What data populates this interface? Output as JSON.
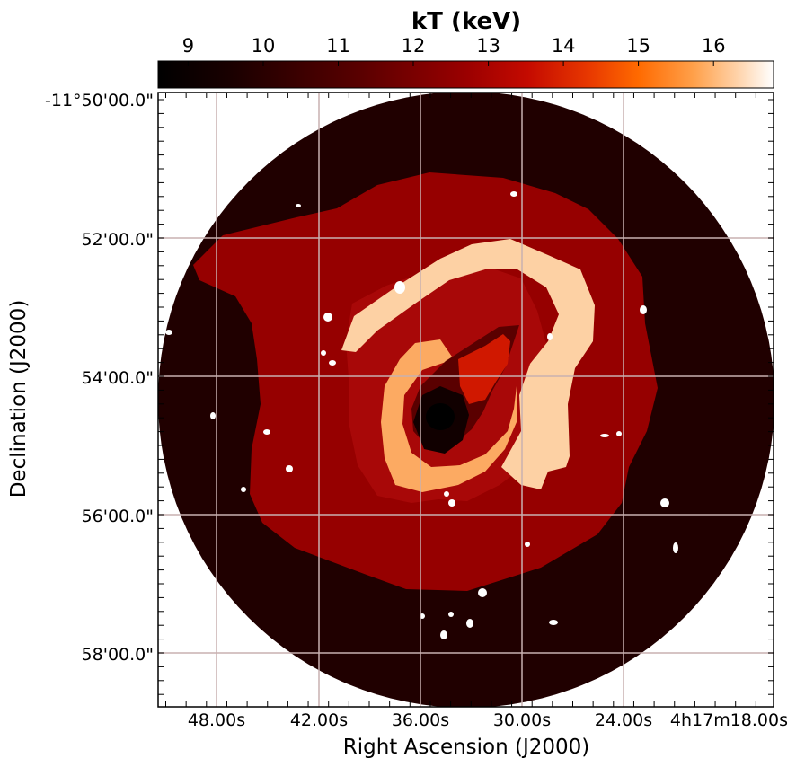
{
  "colorbar": {
    "title": "kT (keV)",
    "ticks": [
      "9",
      "10",
      "11",
      "12",
      "13",
      "14",
      "15",
      "16"
    ],
    "range": [
      8.6,
      16.8
    ]
  },
  "axes": {
    "xlabel": "Right Ascension (J2000)",
    "ylabel": "Declination (J2000)",
    "xticks": [
      "48.00s",
      "42.00s",
      "36.00s",
      "30.00s",
      "24.00s",
      "4h17m18.00s"
    ],
    "yticks": [
      "-11°50'00.0\"",
      "52'00.0\"",
      "54'00.0\"",
      "56'00.0\"",
      "58'00.0\""
    ],
    "grid": true
  },
  "map_regions": [
    {
      "region": "background-disc",
      "kT": 9.3
    },
    {
      "region": "outer-zone",
      "kT": 12.3
    },
    {
      "region": "middle-zone",
      "kT": 12.6
    },
    {
      "region": "arc-shell",
      "kT": 16.5
    },
    {
      "region": "inner-ring",
      "kT": 15.5
    },
    {
      "region": "inner-cavity",
      "kT": 10.5
    },
    {
      "region": "ridge",
      "kT": 12.7
    },
    {
      "region": "core",
      "kT": 8.8
    }
  ],
  "colors": {
    "frame": "#000000",
    "grid": "#c8b0b0",
    "background_disc": "#200000",
    "outer_zone": "#960000",
    "middle_zone": "#a80808",
    "arc_shell": "#fdd1a4",
    "inner_ring": "#fcaa62",
    "inner_cavity": "#5a0000",
    "ridge": "#d01800",
    "core": "#020000",
    "masked_source": "#ffffff"
  }
}
